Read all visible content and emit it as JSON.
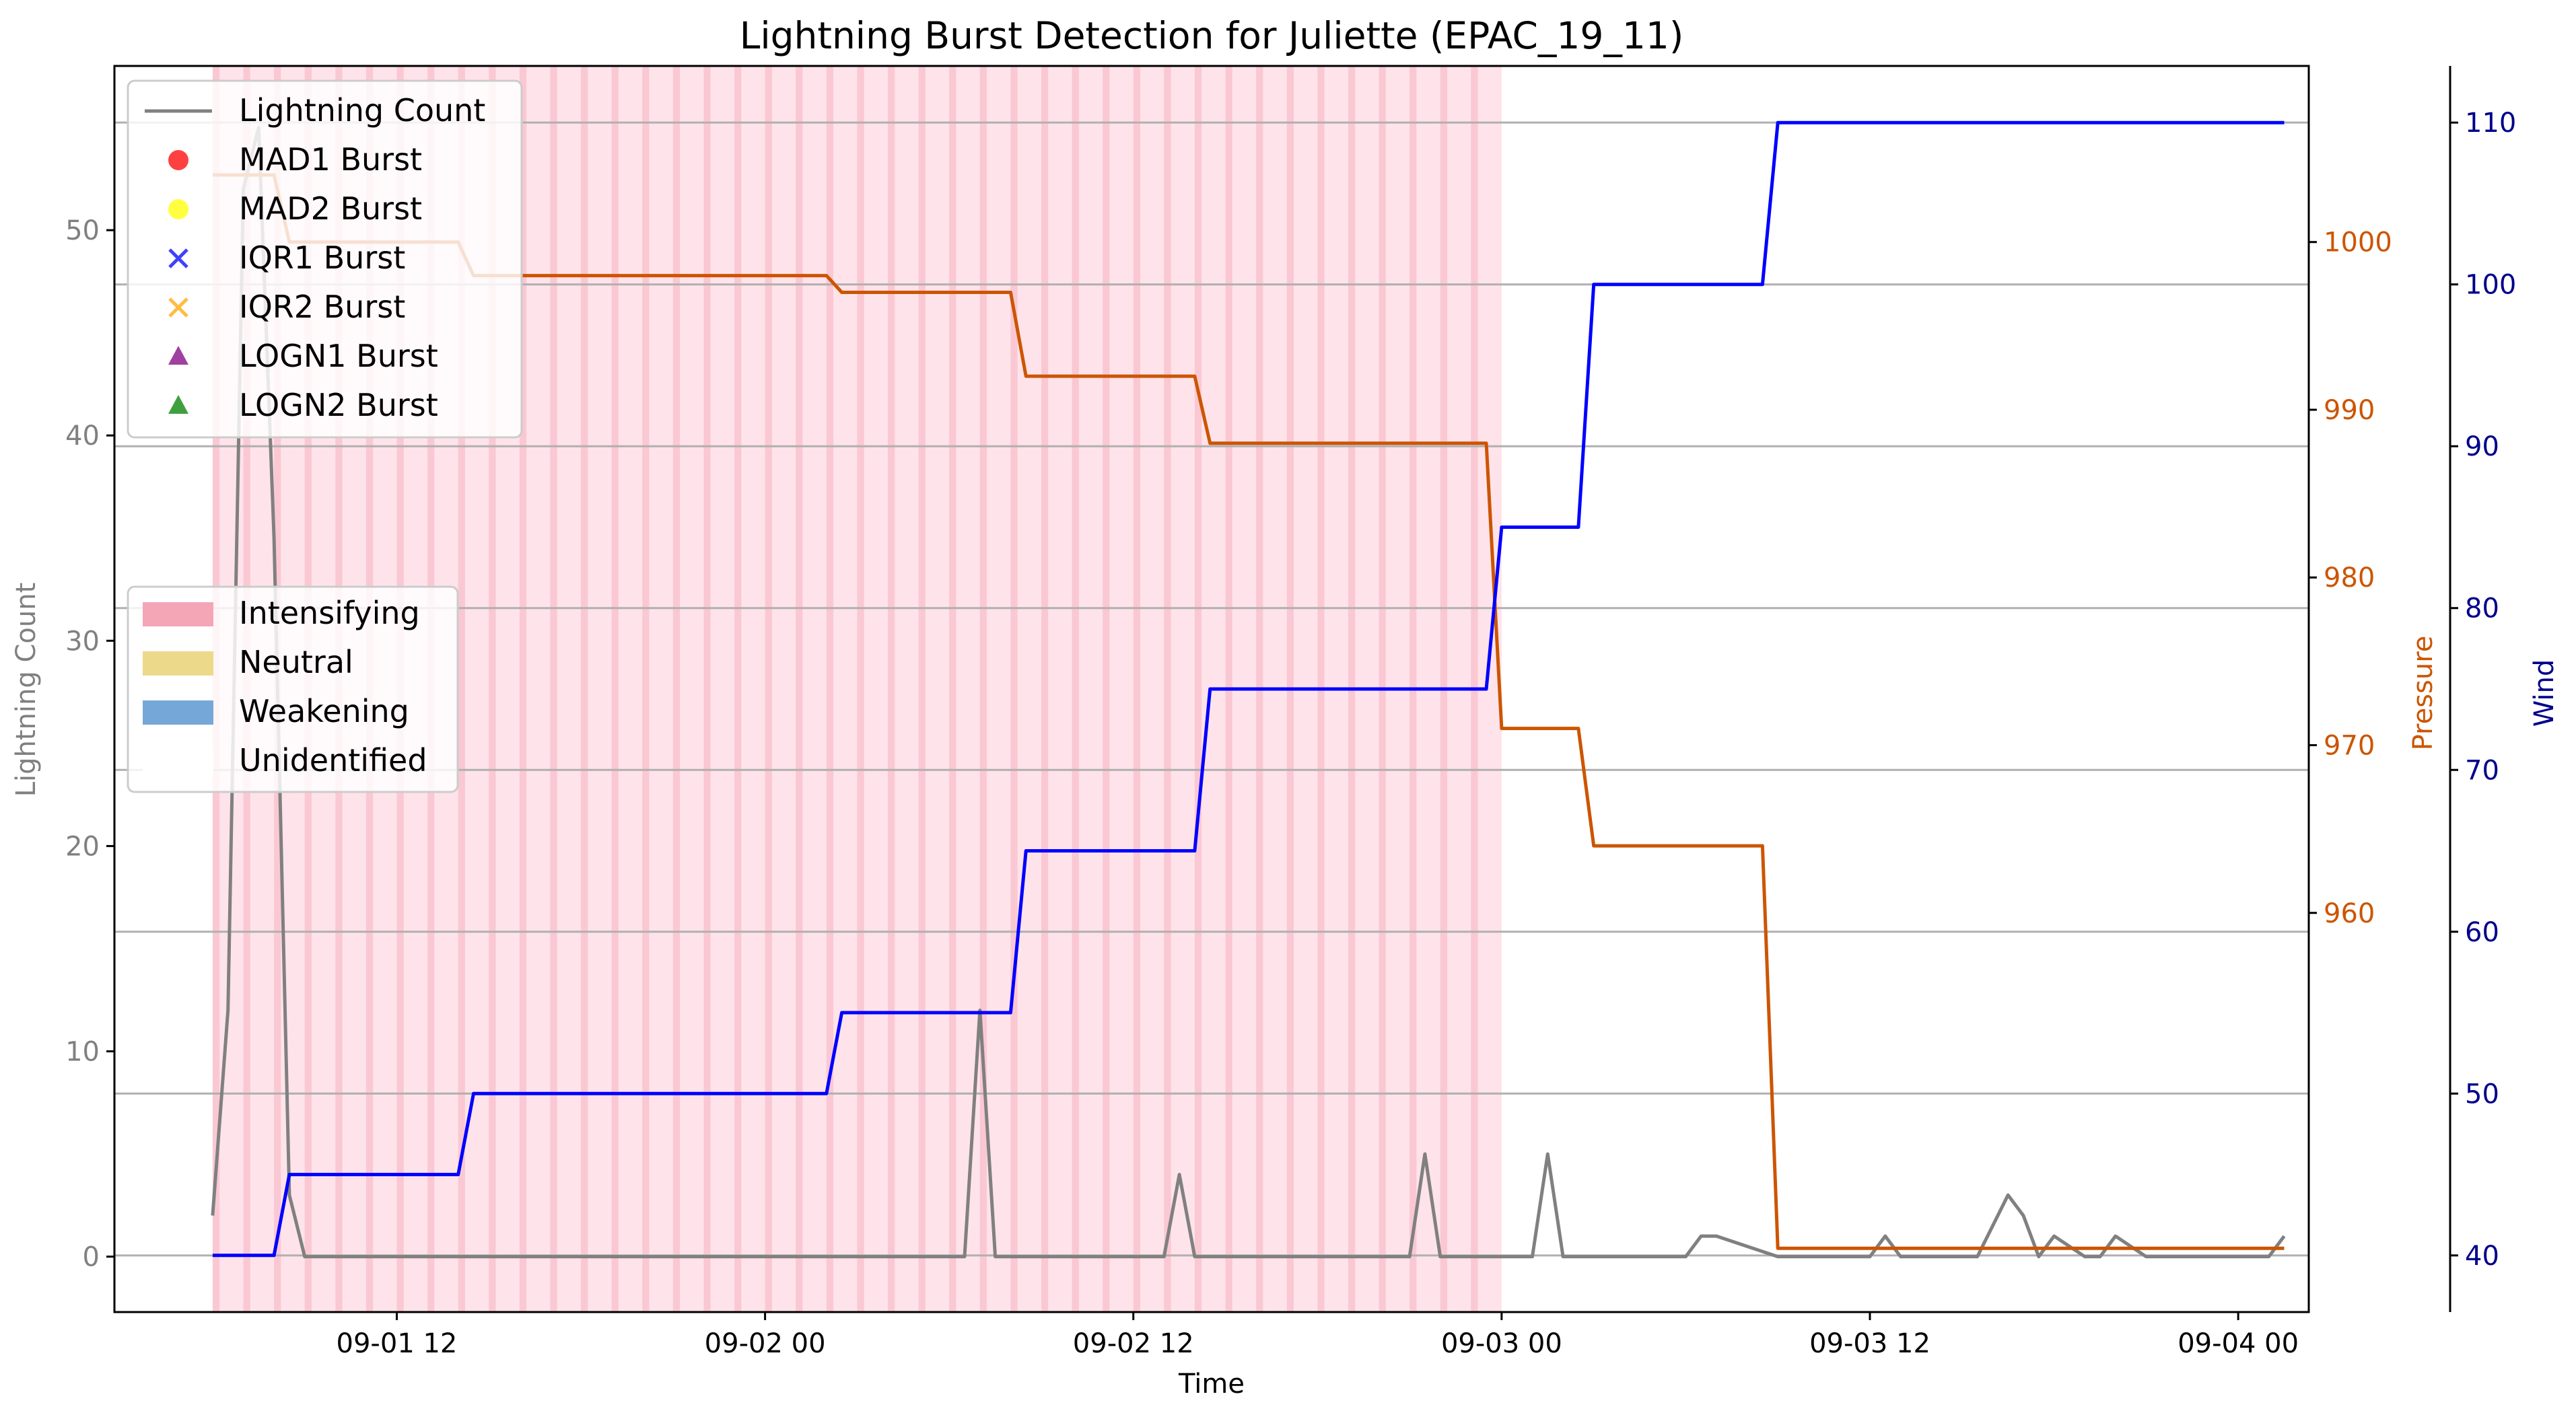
{
  "chart_data": {
    "type": "line",
    "title": "Lightning Burst Detection for Juliette (EPAC_19_11)",
    "xlabel": "Time",
    "ylabel_left": "Lightning Count",
    "ylabel_pressure": "Pressure",
    "ylabel_wind": "Wind",
    "x_ticks": [
      "09-01 12",
      "09-02 00",
      "09-02 12",
      "09-03 00",
      "09-03 12",
      "09-04 00"
    ],
    "x_tick_hours": [
      12,
      24,
      36,
      48,
      60,
      72
    ],
    "x_range_hours": [
      2.8,
      74.3
    ],
    "ylim_left": [
      -2.7,
      58
    ],
    "yticks_left": [
      0,
      10,
      20,
      30,
      40,
      50
    ],
    "ylim_pressure": [
      936.2,
      1010.5
    ],
    "yticks_pressure": [
      960,
      970,
      980,
      990,
      1000
    ],
    "ylim_wind": [
      36.5,
      113.5
    ],
    "yticks_wind": [
      40,
      50,
      60,
      70,
      80,
      90,
      100,
      110
    ],
    "grid": "horizontal",
    "colors": {
      "lightning": "#808080",
      "pressure": "#cc5500",
      "wind": "#0000ff",
      "intensifying": "#f4a6b7",
      "neutral": "#ecd98a",
      "weakening": "#75a8d8",
      "mad1": "#ff0000",
      "mad2": "#ffff00",
      "iqr1": "#0000ff",
      "iqr2": "#ffa500",
      "logn1": "#800080",
      "logn2": "#008000",
      "grid": "#b0b0b0",
      "axis_left_text": "#808080",
      "axis_pressure_text": "#cc5500",
      "axis_wind_text": "#00008b"
    },
    "intensifying_span_hours": [
      6,
      48
    ],
    "series": [
      {
        "name": "Lightning Count",
        "axis": "left",
        "x": [
          6,
          6.5,
          7,
          7.5,
          8,
          8.5,
          9,
          12,
          24,
          30,
          30.5,
          31,
          31.5,
          36,
          37,
          37.5,
          38,
          44,
          45,
          45.5,
          46,
          48,
          49,
          49.5,
          50,
          53,
          54,
          54.5,
          55,
          57,
          58,
          60,
          60.5,
          61,
          63,
          63.5,
          64.5,
          65,
          65.5,
          66,
          67,
          67.5,
          68,
          69,
          70,
          70.5,
          71,
          72,
          73,
          73.5
        ],
        "y": [
          2,
          12,
          52,
          55,
          35,
          3,
          0,
          0,
          0,
          0,
          0,
          12,
          0,
          0,
          0,
          4,
          0,
          0,
          0,
          5,
          0,
          0,
          0,
          5,
          0,
          0,
          0,
          1,
          1,
          0,
          0,
          0,
          1,
          0,
          0,
          0,
          3,
          2,
          0,
          1,
          0,
          0,
          1,
          0,
          0,
          0,
          0,
          0,
          0,
          1
        ]
      },
      {
        "name": "Pressure",
        "axis": "pressure",
        "x": [
          6,
          8,
          8.5,
          14,
          14.5,
          26,
          26.5,
          32,
          32.5,
          38,
          38.5,
          47.5,
          48,
          50.5,
          51,
          56.5,
          57,
          73.5
        ],
        "y": [
          1004,
          1004,
          1000,
          1000,
          998,
          998,
          997,
          997,
          992,
          992,
          988,
          988,
          971,
          971,
          964,
          964,
          940,
          940
        ]
      },
      {
        "name": "Wind",
        "axis": "wind",
        "x": [
          6,
          8,
          8.5,
          14,
          14.5,
          26,
          26.5,
          32,
          32.5,
          38,
          38.5,
          47.5,
          48,
          50.5,
          51,
          56.5,
          57,
          73.5
        ],
        "y": [
          40,
          40,
          45,
          45,
          50,
          50,
          55,
          55,
          65,
          65,
          75,
          75,
          85,
          85,
          100,
          100,
          110,
          110
        ]
      }
    ],
    "legend_markers": [
      {
        "label": "Lightning Count",
        "kind": "line",
        "color": "#808080"
      },
      {
        "label": "MAD1 Burst",
        "kind": "circle",
        "color": "#ff0000"
      },
      {
        "label": "MAD2 Burst",
        "kind": "circle",
        "color": "#ffff00"
      },
      {
        "label": "IQR1 Burst",
        "kind": "x",
        "color": "#0000ff"
      },
      {
        "label": "IQR2 Burst",
        "kind": "x",
        "color": "#ffa500"
      },
      {
        "label": "LOGN1 Burst",
        "kind": "triangle",
        "color": "#800080"
      },
      {
        "label": "LOGN2 Burst",
        "kind": "triangle",
        "color": "#008000"
      }
    ],
    "legend_phases": [
      {
        "label": "Intensifying",
        "color": "#f4a6b7"
      },
      {
        "label": "Neutral",
        "color": "#ecd98a"
      },
      {
        "label": "Weakening",
        "color": "#75a8d8"
      },
      {
        "label": "Unidentified",
        "color": "#ffffff"
      }
    ]
  }
}
